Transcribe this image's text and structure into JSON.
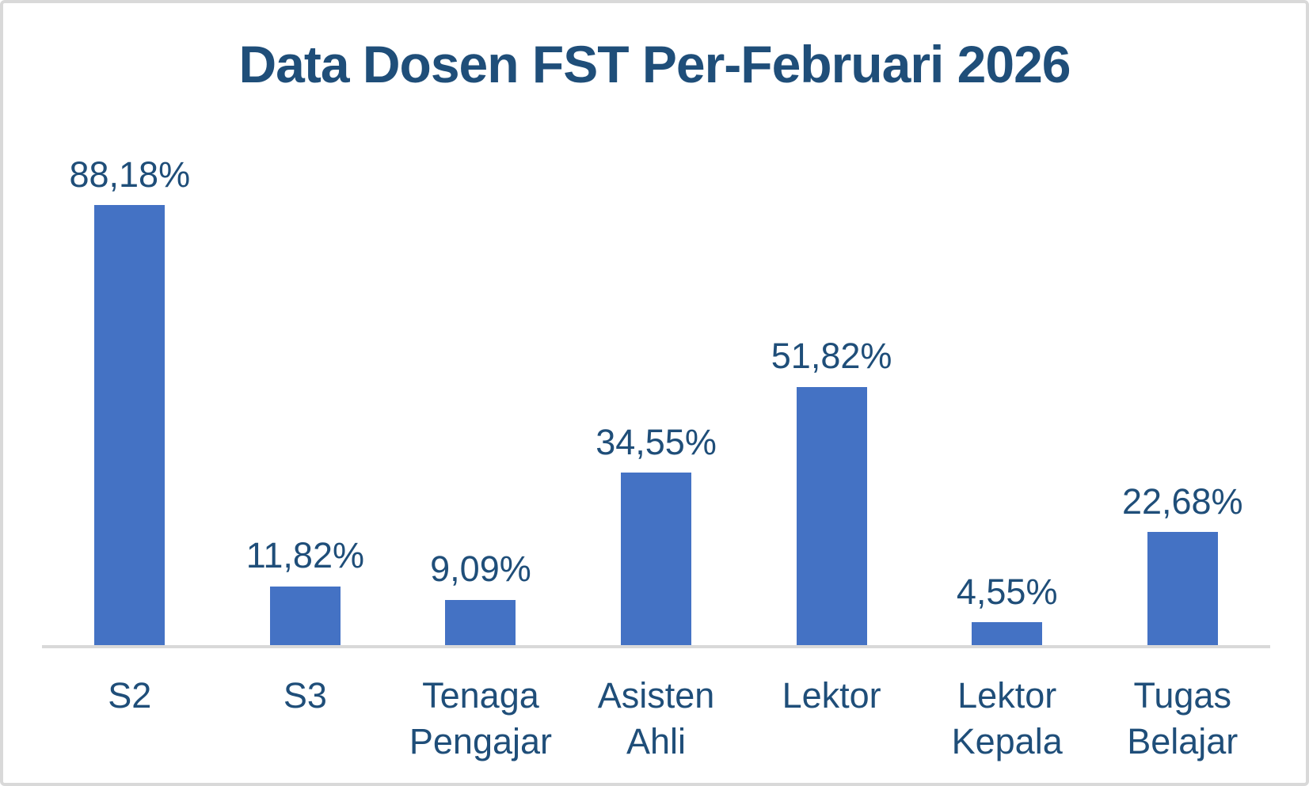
{
  "chart_data": {
    "type": "bar",
    "title": "Data Dosen FST Per-Februari 2026",
    "categories": [
      "S2",
      "S3",
      "Tenaga Pengajar",
      "Asisten Ahli",
      "Lektor",
      "Lektor Kepala",
      "Tugas Belajar"
    ],
    "values": [
      88.18,
      11.82,
      9.09,
      34.55,
      51.82,
      4.55,
      22.68
    ],
    "value_labels": [
      "88,18%",
      "11,82%",
      "9,09%",
      "34,55%",
      "51,82%",
      "4,55%",
      "22,68%"
    ],
    "xlabel": "",
    "ylabel": "",
    "ylim": [
      0,
      100
    ],
    "grid": false,
    "legend": null,
    "data_labels_position": "above-bar",
    "bar_color": "#4472C4",
    "title_color": "#1F4E79",
    "value_label_color": "#1F4E79",
    "category_label_color": "#1F4E79",
    "axis_line_color": "#D9D9D9",
    "frame_border_color": "#D9D9D9",
    "background_color": "#FFFFFF"
  }
}
